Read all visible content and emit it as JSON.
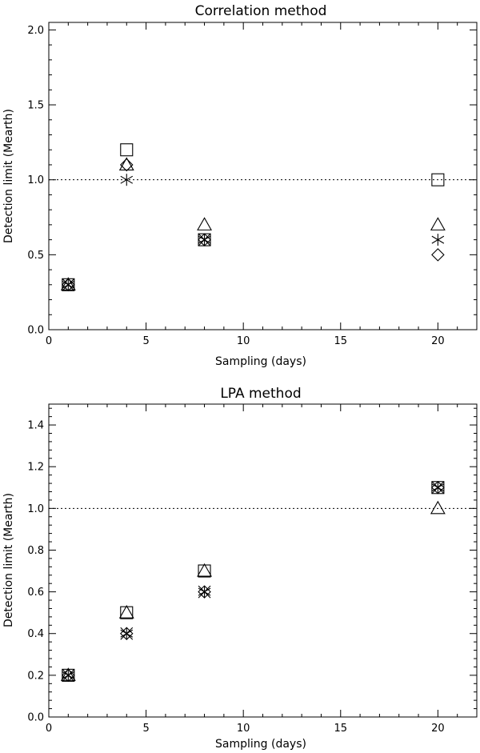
{
  "chart_data": [
    {
      "type": "scatter",
      "title": "Correlation method",
      "xlabel": "Sampling (days)",
      "ylabel": "Detection limit (Mearth)",
      "xlim": [
        0,
        22
      ],
      "ylim": [
        0,
        2.05
      ],
      "xticks": [
        0,
        5,
        10,
        15,
        20
      ],
      "yticks": [
        0.0,
        0.5,
        1.0,
        1.5,
        2.0
      ],
      "xtick_labels": [
        "0",
        "5",
        "10",
        "15",
        "20"
      ],
      "ytick_labels": [
        "0.0",
        "0.5",
        "1.0",
        "1.5",
        "2.0"
      ],
      "reference_line": 1.0,
      "series": [
        {
          "marker": "square",
          "x": [
            1,
            4,
            8,
            20
          ],
          "y": [
            0.3,
            1.2,
            0.6,
            1.0
          ]
        },
        {
          "marker": "triangle",
          "x": [
            1,
            4,
            8,
            20
          ],
          "y": [
            0.3,
            1.1,
            0.7,
            0.7
          ]
        },
        {
          "marker": "diamond",
          "x": [
            1,
            4,
            8,
            20
          ],
          "y": [
            0.3,
            1.1,
            0.6,
            0.5
          ]
        },
        {
          "marker": "asterisk",
          "x": [
            1,
            4,
            8,
            20
          ],
          "y": [
            0.3,
            1.0,
            0.6,
            0.6
          ]
        },
        {
          "marker": "cross",
          "x": [
            1,
            8
          ],
          "y": [
            0.3,
            0.6
          ]
        }
      ]
    },
    {
      "type": "scatter",
      "title": "LPA method",
      "xlabel": "Sampling (days)",
      "ylabel": "Detection limit (Mearth)",
      "xlim": [
        0,
        22
      ],
      "ylim": [
        0,
        1.5
      ],
      "xticks": [
        0,
        5,
        10,
        15,
        20
      ],
      "yticks": [
        0.0,
        0.2,
        0.4,
        0.6,
        0.8,
        1.0,
        1.2,
        1.4
      ],
      "xtick_labels": [
        "0",
        "5",
        "10",
        "15",
        "20"
      ],
      "ytick_labels": [
        "0.0",
        "0.2",
        "0.4",
        "0.6",
        "0.8",
        "1.0",
        "1.2",
        "1.4"
      ],
      "reference_line": 1.0,
      "series": [
        {
          "marker": "square",
          "x": [
            1,
            4,
            8,
            20
          ],
          "y": [
            0.2,
            0.5,
            0.7,
            1.1
          ]
        },
        {
          "marker": "triangle",
          "x": [
            1,
            4,
            8,
            20
          ],
          "y": [
            0.2,
            0.5,
            0.7,
            1.0
          ]
        },
        {
          "marker": "diamond",
          "x": [
            1,
            4,
            8,
            20
          ],
          "y": [
            0.2,
            0.4,
            0.6,
            1.1
          ]
        },
        {
          "marker": "asterisk",
          "x": [
            1,
            4,
            8,
            20
          ],
          "y": [
            0.2,
            0.4,
            0.6,
            1.1
          ]
        },
        {
          "marker": "cross",
          "x": [
            1,
            4,
            8,
            20
          ],
          "y": [
            0.2,
            0.4,
            0.6,
            1.1
          ]
        }
      ]
    }
  ]
}
